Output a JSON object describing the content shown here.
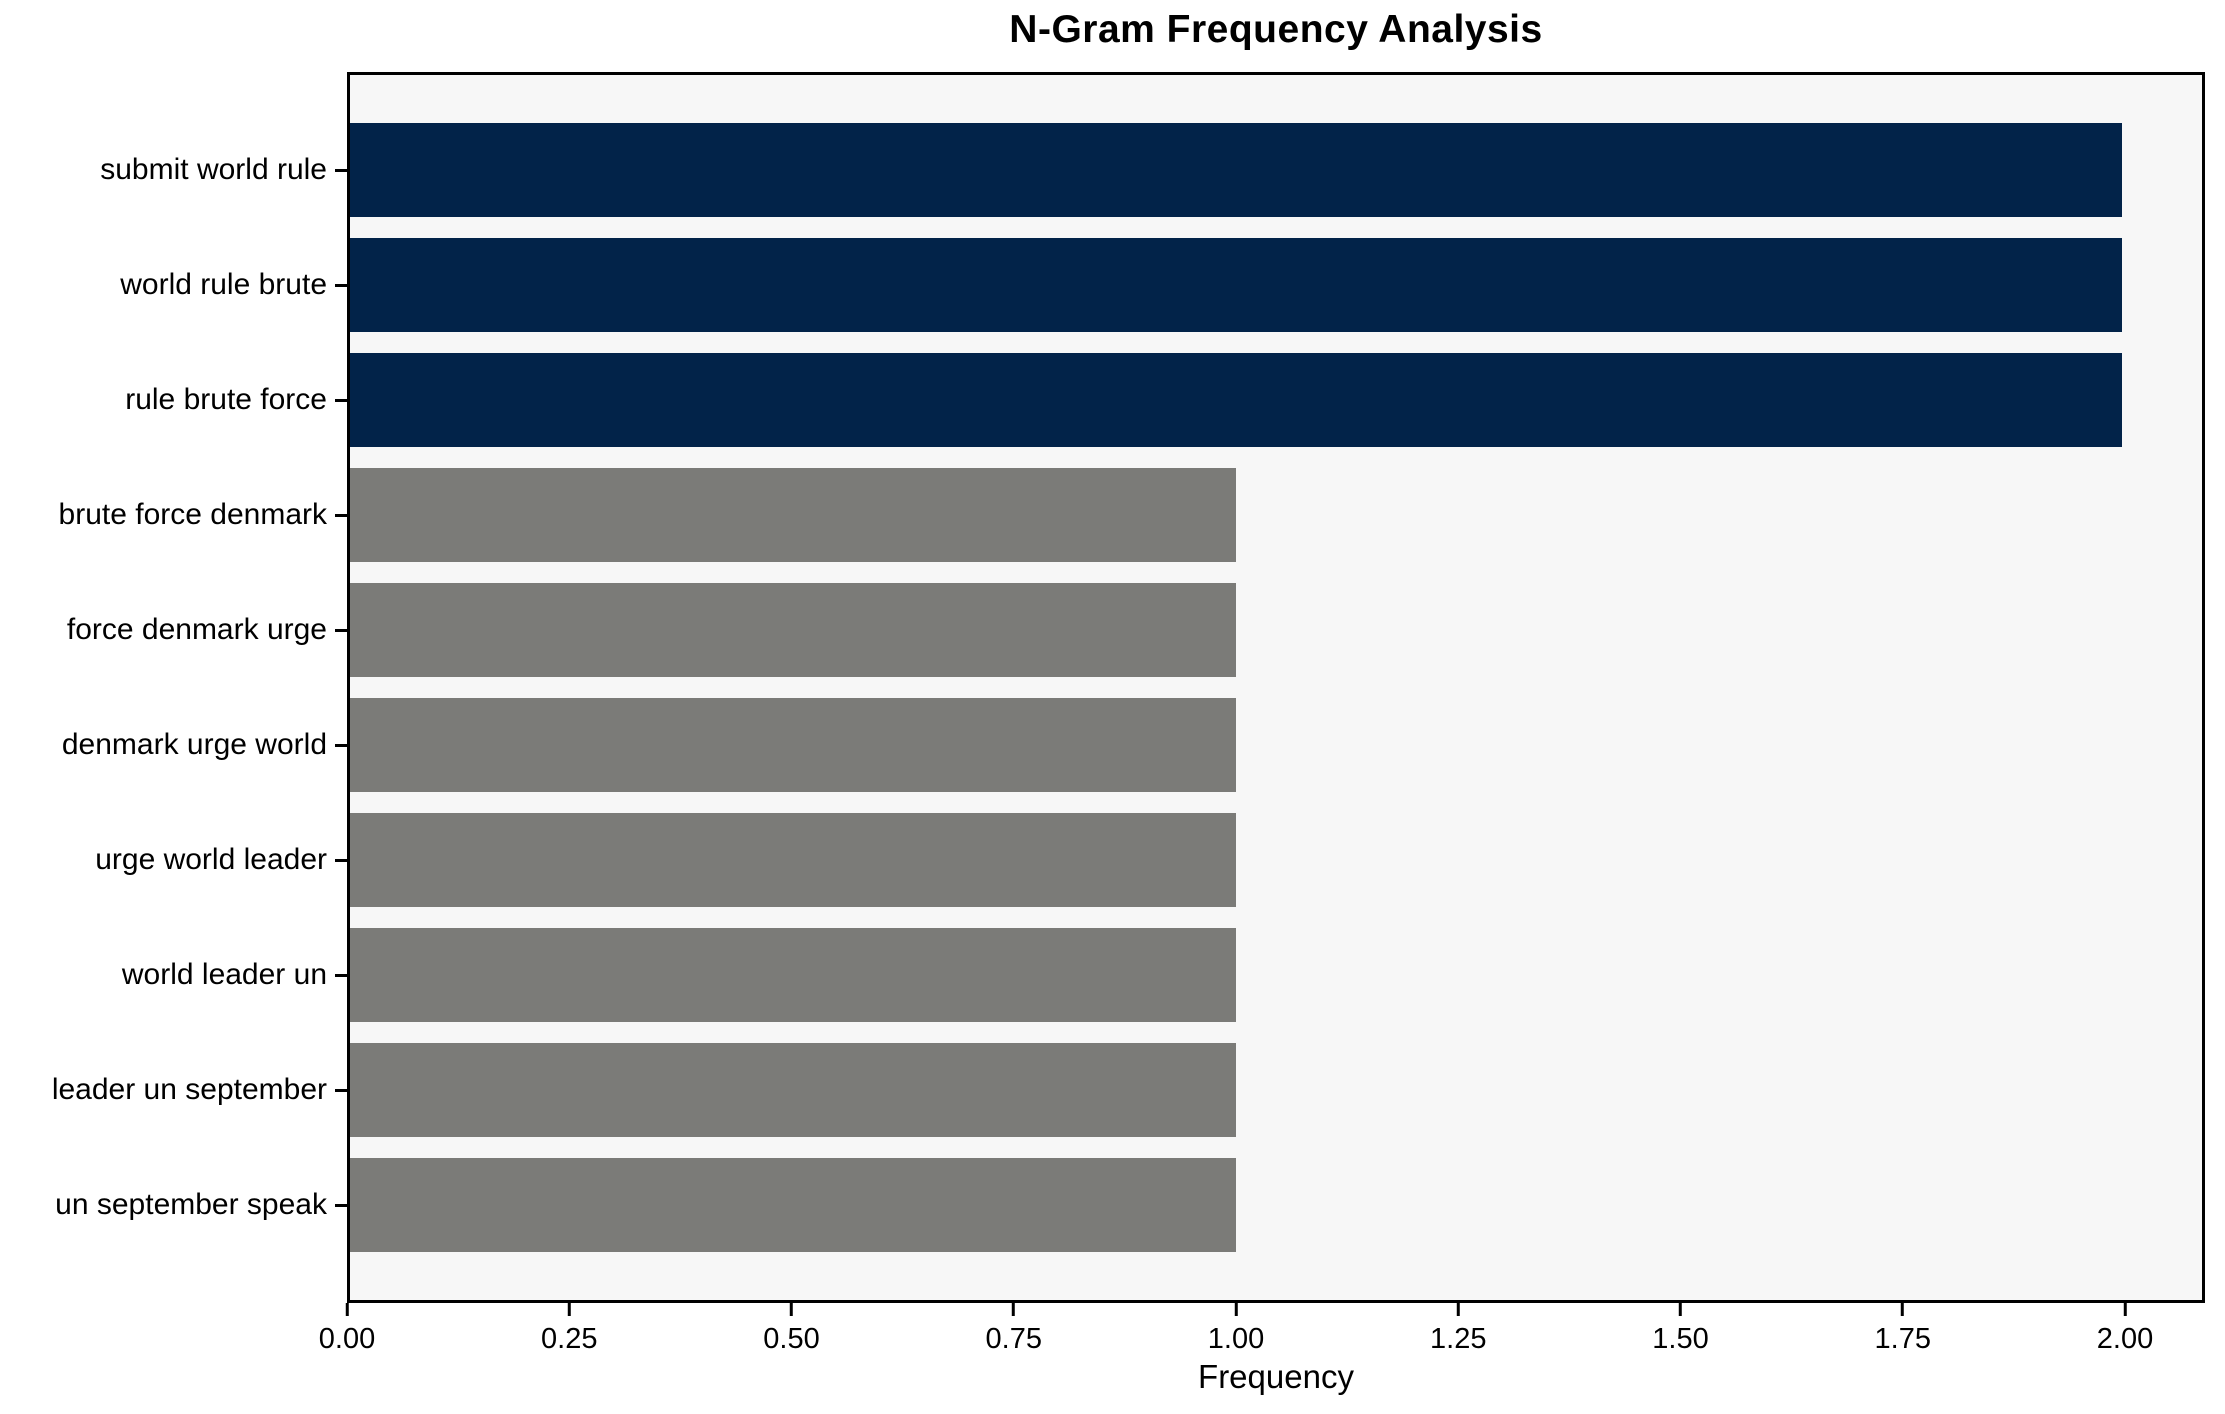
{
  "chart_data": {
    "type": "bar",
    "orientation": "horizontal",
    "title": "N-Gram Frequency Analysis",
    "xlabel": "Frequency",
    "ylabel": "",
    "categories": [
      "submit world rule",
      "world rule brute",
      "rule brute force",
      "brute force denmark",
      "force denmark urge",
      "denmark urge world",
      "urge world leader",
      "world leader un",
      "leader un september",
      "un september speak"
    ],
    "values": [
      2,
      2,
      2,
      1,
      1,
      1,
      1,
      1,
      1,
      1
    ],
    "bar_colors": [
      "#022349",
      "#022349",
      "#022349",
      "#7b7b78",
      "#7b7b78",
      "#7b7b78",
      "#7b7b78",
      "#7b7b78",
      "#7b7b78",
      "#7b7b78"
    ],
    "xlim": [
      0,
      2.09
    ],
    "xticks": {
      "values": [
        0,
        0.25,
        0.5,
        0.75,
        1.0,
        1.25,
        1.5,
        1.75,
        2.0
      ],
      "labels": [
        "0.00",
        "0.25",
        "0.50",
        "0.75",
        "1.00",
        "1.25",
        "1.50",
        "1.75",
        "2.00"
      ]
    },
    "grid": false,
    "legend": false,
    "colors": {
      "highlight": "#022349",
      "base": "#7b7b78",
      "plot_background": "#f7f7f7",
      "figure_background": "#ffffff",
      "axis": "#000000"
    }
  }
}
